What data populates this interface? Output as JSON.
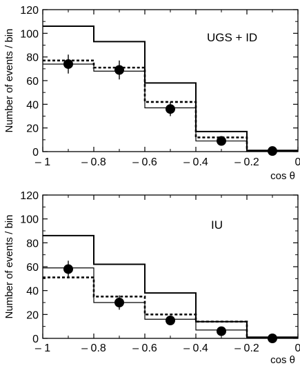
{
  "chart_data": [
    {
      "type": "step-histogram",
      "panel_label": "UGS + ID",
      "xlabel": "cos θ",
      "ylabel": "Number of events / bin",
      "xlim": [
        -1,
        0
      ],
      "ylim": [
        0,
        120
      ],
      "xticks": [
        -1,
        -0.8,
        -0.6,
        -0.4,
        -0.2,
        0
      ],
      "xtick_labels": [
        "– 1",
        "– 0.8",
        "– 0.6",
        "– 0.4",
        "– 0.2",
        "0"
      ],
      "yticks": [
        0,
        20,
        40,
        60,
        80,
        100,
        120
      ],
      "ytick_labels": [
        "0",
        "20",
        "40",
        "60",
        "80",
        "100",
        "120"
      ],
      "bin_edges": [
        -1,
        -0.8,
        -0.6,
        -0.4,
        -0.2,
        0
      ],
      "series": [
        {
          "style": "solid-thick",
          "values": [
            106,
            93,
            58,
            17,
            1
          ]
        },
        {
          "style": "dashed",
          "values": [
            77,
            71,
            42,
            12,
            0.5
          ]
        },
        {
          "style": "solid-thin",
          "values": [
            74,
            68,
            37,
            9,
            0.5
          ]
        }
      ],
      "points": {
        "x": [
          -0.9,
          -0.7,
          -0.5,
          -0.3,
          -0.1
        ],
        "y": [
          74,
          69,
          36,
          9,
          0.5
        ],
        "err": [
          8,
          8,
          6,
          2,
          0
        ]
      }
    },
    {
      "type": "step-histogram",
      "panel_label": "IU",
      "xlabel": "cos θ",
      "ylabel": "Number of events / bin",
      "xlim": [
        -1,
        0
      ],
      "ylim": [
        0,
        120
      ],
      "xticks": [
        -1,
        -0.8,
        -0.6,
        -0.4,
        -0.2,
        0
      ],
      "xtick_labels": [
        "– 1",
        "– 0.8",
        "– 0.6",
        "– 0.4",
        "– 0.2",
        "0"
      ],
      "yticks": [
        0,
        20,
        40,
        60,
        80,
        100,
        120
      ],
      "ytick_labels": [
        "0",
        "20",
        "40",
        "60",
        "80",
        "100",
        "120"
      ],
      "bin_edges": [
        -1,
        -0.8,
        -0.6,
        -0.4,
        -0.2,
        0
      ],
      "series": [
        {
          "style": "solid-thick",
          "values": [
            86,
            62,
            38,
            14,
            1
          ]
        },
        {
          "style": "dashed",
          "values": [
            51,
            35,
            20,
            14,
            0.5
          ]
        },
        {
          "style": "solid-thin",
          "values": [
            59,
            30,
            16,
            7,
            0.5
          ]
        }
      ],
      "points": {
        "x": [
          -0.9,
          -0.7,
          -0.5,
          -0.3,
          -0.1
        ],
        "y": [
          58,
          30,
          15,
          6,
          0
        ],
        "err": [
          7,
          6,
          4,
          2,
          0
        ]
      }
    }
  ]
}
